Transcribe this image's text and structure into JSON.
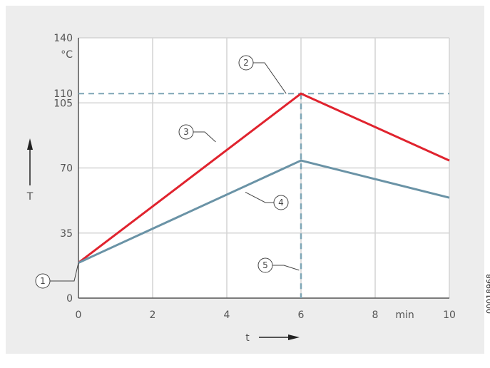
{
  "figure_id": "00018968",
  "chart_data": {
    "type": "line",
    "xlabel": "t",
    "x_unit": "min",
    "ylabel": "T",
    "y_unit": "°C",
    "xlim": [
      0,
      10
    ],
    "ylim": [
      0,
      140
    ],
    "x_ticks": [
      0,
      2,
      4,
      6,
      8,
      10
    ],
    "y_ticks": [
      0,
      35,
      70,
      105,
      110,
      140
    ],
    "grid": true,
    "series": [
      {
        "color": "#e0232e",
        "x": [
          0,
          6,
          10
        ],
        "y": [
          19,
          110,
          74
        ]
      },
      {
        "color": "#6a93a6",
        "x": [
          0,
          6,
          10
        ],
        "y": [
          19,
          74,
          54
        ]
      }
    ],
    "reference_lines": [
      {
        "orientation": "horizontal",
        "value": 110,
        "style": "dashed",
        "color": "#7fa6b6"
      },
      {
        "orientation": "vertical",
        "value": 6,
        "style": "dashed",
        "color": "#7fa6b6"
      }
    ],
    "callouts": [
      {
        "label": "1",
        "x": 0,
        "y": 19
      },
      {
        "label": "2",
        "x": 5.6,
        "y": 110
      },
      {
        "label": "3",
        "x": 3.7,
        "y": 84
      },
      {
        "label": "4",
        "x": 4.5,
        "y": 57
      },
      {
        "label": "5",
        "x": 6,
        "y": 15
      }
    ]
  }
}
